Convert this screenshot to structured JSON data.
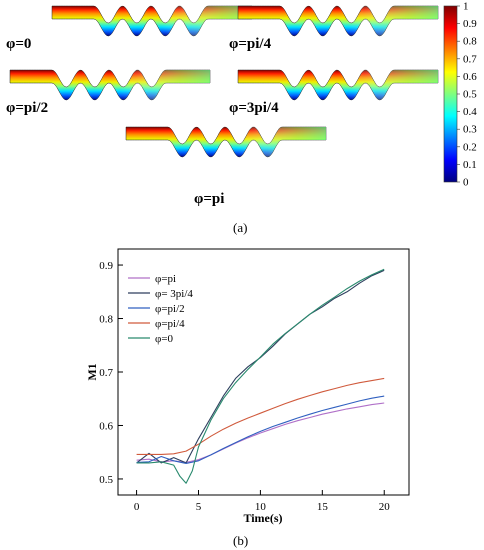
{
  "panel_a": {
    "caption": "(a)",
    "panels": [
      {
        "label": "φ=0"
      },
      {
        "label": "φ=pi/4"
      },
      {
        "label": "φ=pi/2"
      },
      {
        "label": "φ=3pi/4"
      },
      {
        "label": "φ=pi"
      }
    ],
    "colorbar": {
      "ticks": [
        "1",
        "0.9",
        "0.8",
        "0.7",
        "0.6",
        "0.5",
        "0.4",
        "0.3",
        "0.2",
        "0.1",
        "0"
      ],
      "colors": [
        "#00007f",
        "#0000ff",
        "#007fff",
        "#00ffff",
        "#7fff7f",
        "#ffff00",
        "#ff7f00",
        "#ff0000",
        "#7f0000"
      ]
    }
  },
  "panel_b": {
    "caption": "(b)"
  },
  "chart_data": {
    "type": "line",
    "title": "",
    "xlabel": "Time(s)",
    "ylabel": "M1",
    "xlim": [
      -1.5,
      22
    ],
    "ylim": [
      0.47,
      0.93
    ],
    "xticks": [
      "0",
      "5",
      "10",
      "15",
      "20"
    ],
    "yticks": [
      "0.5",
      "0.6",
      "0.7",
      "0.8",
      "0.9"
    ],
    "grid": false,
    "legend_position": "top-left",
    "series": [
      {
        "name": "φ=pi",
        "color": "#b070c8",
        "x": [
          0,
          1,
          2,
          3,
          4,
          5,
          6,
          7,
          8,
          9,
          10,
          11,
          12,
          13,
          14,
          15,
          16,
          17,
          18,
          19,
          20
        ],
        "y": [
          0.535,
          0.537,
          0.532,
          0.534,
          0.531,
          0.536,
          0.545,
          0.556,
          0.567,
          0.577,
          0.586,
          0.594,
          0.602,
          0.609,
          0.615,
          0.621,
          0.626,
          0.631,
          0.635,
          0.639,
          0.642
        ]
      },
      {
        "name": "φ= 3pi/4",
        "color": "#2e3f5e",
        "x": [
          0,
          1,
          2,
          3,
          4,
          5,
          6,
          7,
          8,
          9,
          10,
          11,
          12,
          13,
          14,
          15,
          16,
          17,
          18,
          19,
          20
        ],
        "y": [
          0.53,
          0.548,
          0.53,
          0.54,
          0.53,
          0.575,
          0.615,
          0.655,
          0.688,
          0.71,
          0.727,
          0.748,
          0.771,
          0.79,
          0.808,
          0.822,
          0.838,
          0.85,
          0.866,
          0.88,
          0.89
        ]
      },
      {
        "name": "φ=pi/2",
        "color": "#3060c0",
        "x": [
          0,
          1,
          2,
          3,
          4,
          5,
          6,
          7,
          8,
          9,
          10,
          11,
          12,
          13,
          14,
          15,
          16,
          17,
          18,
          19,
          20
        ],
        "y": [
          0.531,
          0.532,
          0.542,
          0.534,
          0.529,
          0.534,
          0.545,
          0.557,
          0.568,
          0.579,
          0.589,
          0.598,
          0.606,
          0.614,
          0.621,
          0.628,
          0.634,
          0.64,
          0.646,
          0.651,
          0.655
        ]
      },
      {
        "name": "φ=pi/4",
        "color": "#d05a3c",
        "x": [
          0,
          1,
          2,
          3,
          4,
          5,
          6,
          7,
          8,
          9,
          10,
          11,
          12,
          13,
          14,
          15,
          16,
          17,
          18,
          19,
          20
        ],
        "y": [
          0.546,
          0.546,
          0.546,
          0.547,
          0.552,
          0.565,
          0.58,
          0.593,
          0.604,
          0.614,
          0.623,
          0.632,
          0.641,
          0.649,
          0.656,
          0.663,
          0.669,
          0.675,
          0.68,
          0.684,
          0.688
        ]
      },
      {
        "name": "φ=0",
        "color": "#2a8a6e",
        "x": [
          0,
          1,
          2,
          3,
          3.5,
          4,
          4.5,
          5,
          6,
          7,
          8,
          9,
          10,
          11,
          12,
          13,
          14,
          15,
          16,
          17,
          18,
          19,
          20
        ],
        "y": [
          0.53,
          0.53,
          0.532,
          0.526,
          0.505,
          0.492,
          0.515,
          0.56,
          0.61,
          0.65,
          0.68,
          0.705,
          0.728,
          0.752,
          0.772,
          0.79,
          0.808,
          0.825,
          0.84,
          0.856,
          0.87,
          0.882,
          0.892
        ]
      }
    ]
  }
}
